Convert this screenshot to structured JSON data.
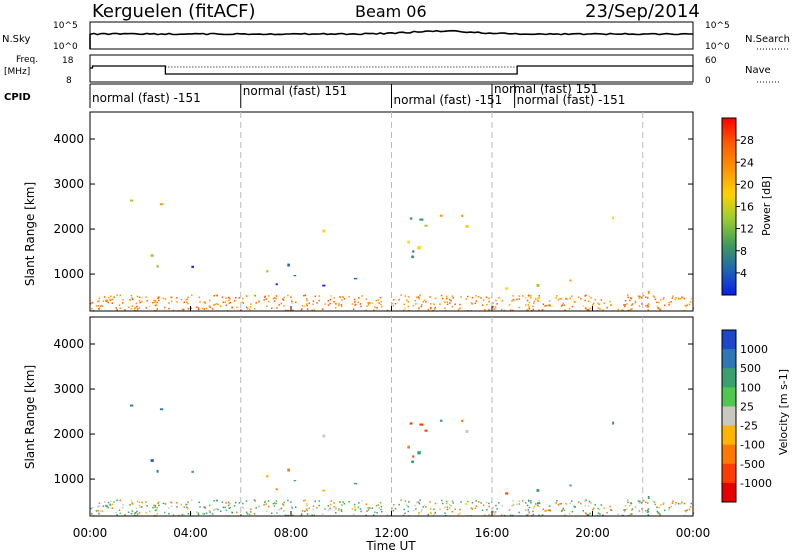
{
  "header": {
    "station": "Kerguelen (fitACF)",
    "beam": "Beam 06",
    "date": "23/Sep/2014"
  },
  "top_panels": {
    "nsky_label": "N.Sky",
    "nsky_ticks": [
      "10^5",
      "10^0"
    ],
    "nsearch_label": "N.Search",
    "nsearch_ticks": [
      "10^5",
      "10^0"
    ],
    "freq_label_1": "Freq.",
    "freq_label_2": "[MHz]",
    "freq_ticks": [
      "18",
      "8"
    ],
    "nave_label": "Nave",
    "nave_ticks": [
      "60",
      "0"
    ],
    "cpid_label": "CPID",
    "cpid_segments": [
      {
        "label": "normal (fast) -151",
        "start_h": 0,
        "end_h": 6
      },
      {
        "label": "normal (fast) 151",
        "start_h": 6,
        "end_h": 12
      },
      {
        "label": "normal (fast) -151",
        "start_h": 12,
        "end_h": 16
      },
      {
        "label": "normal (fast) 151",
        "start_h": 16,
        "end_h": 22
      },
      {
        "label": "normal (fast) -151",
        "start_h": 16.9,
        "end_h": 24
      }
    ]
  },
  "axes": {
    "ylabel": "Slant Range [km]",
    "xlabel": "Time UT",
    "x_ticks": [
      "00:00",
      "04:00",
      "08:00",
      "12:00",
      "16:00",
      "20:00",
      "00:00"
    ],
    "y_ticks": [
      "1000",
      "2000",
      "3000",
      "4000"
    ]
  },
  "power_colorbar": {
    "label": "Power [dB]",
    "ticks": [
      "28",
      "24",
      "20",
      "16",
      "12",
      "8",
      "4"
    ],
    "colors": [
      "#ff0000",
      "#ff5a00",
      "#ff9600",
      "#ffd200",
      "#9bcd32",
      "#3c9b5a",
      "#1e64b4",
      "#0a1ee6"
    ]
  },
  "velocity_colorbar": {
    "label": "Velocity [m s-1]",
    "ticks": [
      "1000",
      "500",
      "100",
      "25",
      "-25",
      "-100",
      "-500",
      "-1000"
    ],
    "colors": [
      "#1e46c8",
      "#2d78b4",
      "#3ca06e",
      "#50c850",
      "#c8c8c0",
      "#ffb400",
      "#ff7800",
      "#ff3c00",
      "#e60000"
    ]
  },
  "chart_data": {
    "type": "heatmap",
    "x_range_h": [
      0,
      24
    ],
    "y_range_km": [
      180,
      4600
    ],
    "panels": [
      {
        "name": "Power",
        "unit": "dB",
        "range": [
          0,
          30
        ]
      },
      {
        "name": "Velocity",
        "unit": "m/s",
        "range": [
          -1000,
          1000
        ]
      }
    ],
    "echo_regions": [
      {
        "t0": 1.3,
        "t1": 3.0,
        "r0": 800,
        "r1": 2900,
        "power": 14,
        "velocity": 600
      },
      {
        "t0": 2.5,
        "t1": 8.0,
        "r0": 1000,
        "r1": 1500,
        "power": 22,
        "velocity": 0
      },
      {
        "t0": 6.0,
        "t1": 11.5,
        "r0": 700,
        "r1": 1400,
        "power": 27,
        "velocity": 0
      },
      {
        "t0": 8.0,
        "t1": 11.0,
        "r0": 1900,
        "r1": 2300,
        "power": 8,
        "velocity": 0
      },
      {
        "t0": 11.5,
        "t1": 13.5,
        "r0": 1000,
        "r1": 2800,
        "power": 26,
        "velocity": -600
      },
      {
        "t0": 12.5,
        "t1": 14.0,
        "r0": 900,
        "r1": 1800,
        "power": 18,
        "velocity": 0
      },
      {
        "t0": 13.0,
        "t1": 16.0,
        "r0": 1200,
        "r1": 2500,
        "power": 12,
        "velocity": 0
      },
      {
        "t0": 15.5,
        "t1": 17.0,
        "r0": 600,
        "r1": 1400,
        "power": 14,
        "velocity": -400
      },
      {
        "t0": 17.0,
        "t1": 23.5,
        "r0": 400,
        "r1": 1100,
        "power": 10,
        "velocity": 200
      },
      {
        "t0": 20.5,
        "t1": 21.8,
        "r0": 1900,
        "r1": 2700,
        "power": 6,
        "velocity": 400
      }
    ]
  }
}
